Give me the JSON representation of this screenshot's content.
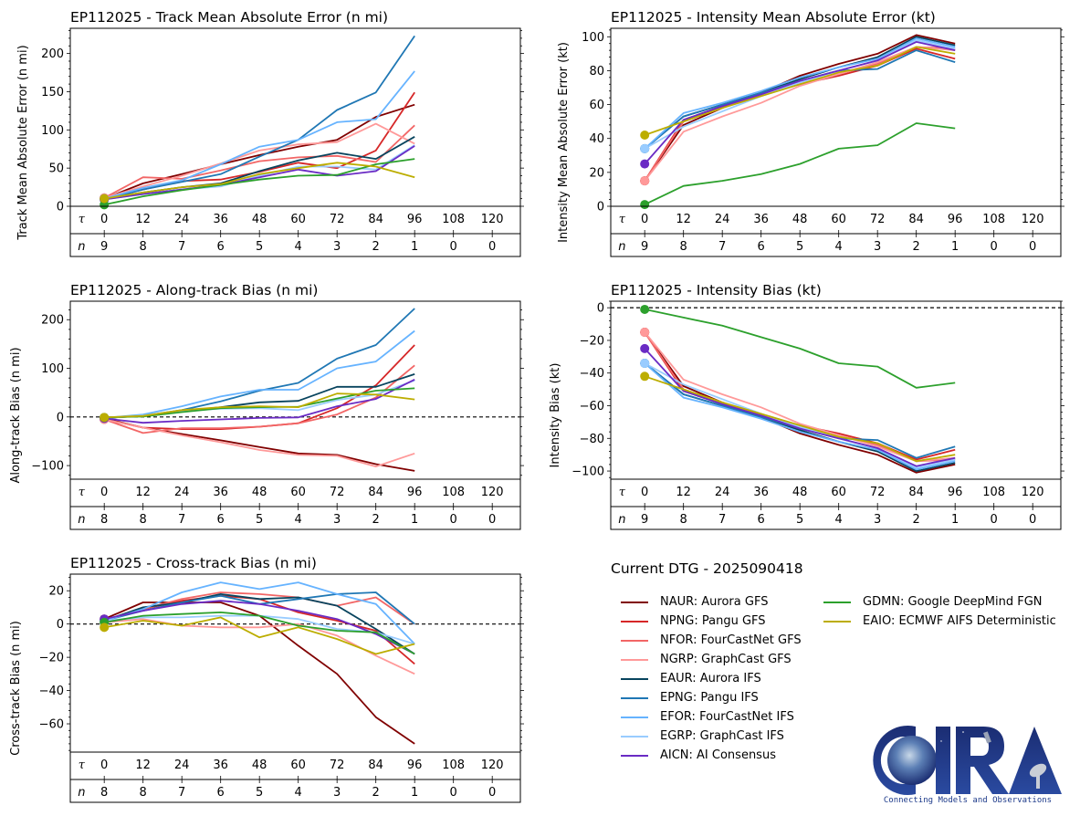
{
  "figure": {
    "storm_id": "EP112025",
    "current_dtg_label": "Current DTG - 2025090418"
  },
  "models": [
    {
      "id": "NAUR",
      "label": "NAUR: Aurora GFS",
      "color": "#800000"
    },
    {
      "id": "NPNG",
      "label": "NPNG: Pangu GFS",
      "color": "#d62728"
    },
    {
      "id": "NFOR",
      "label": "NFOR: FourCastNet GFS",
      "color": "#f26666"
    },
    {
      "id": "NGRP",
      "label": "NGRP: GraphCast GFS",
      "color": "#ff9999"
    },
    {
      "id": "EAUR",
      "label": "EAUR: Aurora IFS",
      "color": "#08445e"
    },
    {
      "id": "EPNG",
      "label": "EPNG: Pangu IFS",
      "color": "#1f77b4"
    },
    {
      "id": "EFOR",
      "label": "EFOR: FourCastNet IFS",
      "color": "#66b3ff"
    },
    {
      "id": "EGRP",
      "label": "EGRP: GraphCast IFS",
      "color": "#99ccff"
    },
    {
      "id": "AICN",
      "label": "AICN: AI Consensus",
      "color": "#6a2bc4"
    },
    {
      "id": "GDMN",
      "label": "GDMN: Google DeepMind FGN",
      "color": "#2ca02c"
    },
    {
      "id": "EAIO",
      "label": "EAIO: ECMWF AIFS Deterministic",
      "color": "#bcad00"
    }
  ],
  "logo": {
    "text": "CIRA",
    "tagline": "Connecting Models and Observations"
  },
  "chart_data": [
    {
      "id": "track_mae",
      "type": "line",
      "title": "EP112025 - Track Mean Absolute Error (n mi)",
      "xlabel": "",
      "ylabel": "Track Mean Absolute Error (n mi)",
      "ylim": [
        0,
        233
      ],
      "yticks": [
        0,
        50,
        100,
        150,
        200
      ],
      "zero_line": false,
      "x_label_tau": "τ",
      "x_label_n": "n",
      "x": [
        0,
        12,
        24,
        36,
        48,
        60,
        72,
        84,
        96
      ],
      "tau_ticks": [
        0,
        12,
        24,
        36,
        48,
        60,
        72,
        84,
        96,
        108,
        120
      ],
      "n_counts": [
        9,
        8,
        7,
        6,
        5,
        4,
        3,
        2,
        1,
        0,
        0
      ],
      "series": [
        {
          "name": "NAUR",
          "values": [
            10,
            30,
            42,
            55,
            67,
            78,
            87,
            117,
            133
          ]
        },
        {
          "name": "NPNG",
          "values": [
            10,
            22,
            33,
            35,
            45,
            57,
            50,
            73,
            149
          ]
        },
        {
          "name": "NFOR",
          "values": [
            11,
            38,
            36,
            47,
            59,
            64,
            66,
            58,
            106
          ]
        },
        {
          "name": "NGRP",
          "values": [
            11,
            26,
            40,
            56,
            73,
            81,
            84,
            108,
            82
          ]
        },
        {
          "name": "EAUR",
          "values": [
            10,
            18,
            25,
            30,
            46,
            60,
            70,
            62,
            91
          ]
        },
        {
          "name": "EPNG",
          "values": [
            9,
            22,
            32,
            42,
            65,
            87,
            126,
            149,
            223
          ]
        },
        {
          "name": "EFOR",
          "values": [
            10,
            24,
            34,
            55,
            78,
            87,
            110,
            114,
            177
          ]
        },
        {
          "name": "EGRP",
          "values": [
            9,
            16,
            22,
            26,
            40,
            52,
            52,
            48,
            80
          ]
        },
        {
          "name": "AICN",
          "values": [
            9,
            16,
            22,
            28,
            38,
            48,
            40,
            46,
            79
          ]
        },
        {
          "name": "GDMN",
          "values": [
            2,
            13,
            21,
            28,
            35,
            40,
            41,
            55,
            62
          ]
        },
        {
          "name": "EAIO",
          "values": [
            10,
            18,
            25,
            29,
            42,
            50,
            57,
            52,
            38
          ]
        }
      ]
    },
    {
      "id": "intensity_mae",
      "type": "line",
      "title": "EP112025 - Intensity Mean Absolute Error (kt)",
      "xlabel": "",
      "ylabel": "Intensity Mean Absolute Error (kt)",
      "ylim": [
        0,
        105
      ],
      "yticks": [
        0,
        20,
        40,
        60,
        80,
        100
      ],
      "zero_line": false,
      "x_label_tau": "τ",
      "x_label_n": "n",
      "x": [
        0,
        12,
        24,
        36,
        48,
        60,
        72,
        84,
        96
      ],
      "tau_ticks": [
        0,
        12,
        24,
        36,
        48,
        60,
        72,
        84,
        96,
        108,
        120
      ],
      "n_counts": [
        9,
        8,
        7,
        6,
        5,
        4,
        3,
        2,
        1,
        0,
        0
      ],
      "series": [
        {
          "name": "NAUR",
          "values": [
            15,
            48,
            58,
            67,
            77,
            84,
            90,
            101,
            96
          ]
        },
        {
          "name": "NPNG",
          "values": [
            15,
            51,
            59,
            66,
            72,
            77,
            83,
            93,
            87
          ]
        },
        {
          "name": "NFOR",
          "values": [
            15,
            50,
            58,
            66,
            72,
            78,
            84,
            94,
            93
          ]
        },
        {
          "name": "NGRP",
          "values": [
            15,
            44,
            53,
            61,
            71,
            78,
            85,
            94,
            92
          ]
        },
        {
          "name": "EAUR",
          "values": [
            34,
            53,
            60,
            67,
            75,
            82,
            88,
            100,
            95
          ]
        },
        {
          "name": "EPNG",
          "values": [
            34,
            53,
            60,
            67,
            74,
            80,
            81,
            92,
            85
          ]
        },
        {
          "name": "EFOR",
          "values": [
            34,
            55,
            61,
            68,
            76,
            82,
            87,
            99,
            94
          ]
        },
        {
          "name": "EGRP",
          "values": [
            34,
            47,
            56,
            65,
            73,
            80,
            86,
            98,
            93
          ]
        },
        {
          "name": "AICN",
          "values": [
            25,
            51,
            59,
            66,
            74,
            80,
            86,
            97,
            92
          ]
        },
        {
          "name": "GDMN",
          "values": [
            1,
            12,
            15,
            19,
            25,
            34,
            36,
            49,
            46
          ]
        },
        {
          "name": "EAIO",
          "values": [
            42,
            50,
            58,
            65,
            72,
            79,
            83,
            94,
            90
          ]
        }
      ]
    },
    {
      "id": "along_track_bias",
      "type": "line",
      "title": "EP112025 - Along-track Bias (n mi)",
      "xlabel": "",
      "ylabel": "Along-track Bias (n mi)",
      "ylim": [
        -128,
        238
      ],
      "yticks": [
        -100,
        0,
        100,
        200
      ],
      "zero_line": true,
      "x_label_tau": "τ",
      "x_label_n": "n",
      "x": [
        0,
        12,
        24,
        36,
        48,
        60,
        72,
        84,
        96
      ],
      "tau_ticks": [
        0,
        12,
        24,
        36,
        48,
        60,
        72,
        84,
        96,
        108,
        120
      ],
      "n_counts": [
        8,
        8,
        7,
        6,
        5,
        4,
        3,
        2,
        1,
        0,
        0
      ],
      "series": [
        {
          "name": "NAUR",
          "values": [
            -3,
            -22,
            -35,
            -48,
            -62,
            -75,
            -78,
            -97,
            -111
          ]
        },
        {
          "name": "NPNG",
          "values": [
            -5,
            -22,
            -25,
            -25,
            -20,
            -13,
            18,
            65,
            148
          ]
        },
        {
          "name": "NFOR",
          "values": [
            -5,
            -33,
            -23,
            -23,
            -20,
            -13,
            5,
            40,
            106
          ]
        },
        {
          "name": "NGRP",
          "values": [
            -5,
            -22,
            -38,
            -52,
            -68,
            -78,
            -80,
            -102,
            -75
          ]
        },
        {
          "name": "EAUR",
          "values": [
            -2,
            2,
            12,
            20,
            30,
            33,
            62,
            62,
            88
          ]
        },
        {
          "name": "EPNG",
          "values": [
            -2,
            2,
            14,
            32,
            54,
            70,
            120,
            148,
            223
          ]
        },
        {
          "name": "EFOR",
          "values": [
            -2,
            5,
            22,
            42,
            56,
            56,
            100,
            114,
            177
          ]
        },
        {
          "name": "EGRP",
          "values": [
            -2,
            3,
            12,
            17,
            18,
            14,
            35,
            46,
            75
          ]
        },
        {
          "name": "AICN",
          "values": [
            -3,
            -12,
            -8,
            -5,
            -2,
            -1,
            22,
            37,
            77
          ]
        },
        {
          "name": "GDMN",
          "values": [
            -1,
            1,
            10,
            18,
            20,
            21,
            38,
            54,
            59
          ]
        },
        {
          "name": "EAIO",
          "values": [
            -1,
            2,
            14,
            20,
            22,
            20,
            48,
            46,
            36
          ]
        }
      ]
    },
    {
      "id": "intensity_bias",
      "type": "line",
      "title": "EP112025 - Intensity Bias (kt)",
      "xlabel": "",
      "ylabel": "Intensity Bias (kt)",
      "ylim": [
        -105,
        4
      ],
      "yticks": [
        -100,
        -80,
        -60,
        -40,
        -20,
        0
      ],
      "zero_line": true,
      "x_label_tau": "τ",
      "x_label_n": "n",
      "x": [
        0,
        12,
        24,
        36,
        48,
        60,
        72,
        84,
        96
      ],
      "tau_ticks": [
        0,
        12,
        24,
        36,
        48,
        60,
        72,
        84,
        96,
        108,
        120
      ],
      "n_counts": [
        9,
        8,
        7,
        6,
        5,
        4,
        3,
        2,
        1,
        0,
        0
      ],
      "series": [
        {
          "name": "NAUR",
          "values": [
            -15,
            -48,
            -58,
            -67,
            -77,
            -84,
            -90,
            -101,
            -96
          ]
        },
        {
          "name": "NPNG",
          "values": [
            -15,
            -51,
            -59,
            -66,
            -72,
            -77,
            -83,
            -93,
            -87
          ]
        },
        {
          "name": "NFOR",
          "values": [
            -15,
            -50,
            -58,
            -66,
            -72,
            -78,
            -84,
            -94,
            -93
          ]
        },
        {
          "name": "NGRP",
          "values": [
            -15,
            -44,
            -53,
            -61,
            -71,
            -78,
            -85,
            -94,
            -92
          ]
        },
        {
          "name": "EAUR",
          "values": [
            -34,
            -53,
            -60,
            -67,
            -75,
            -82,
            -88,
            -100,
            -95
          ]
        },
        {
          "name": "EPNG",
          "values": [
            -34,
            -53,
            -60,
            -67,
            -74,
            -80,
            -81,
            -92,
            -85
          ]
        },
        {
          "name": "EFOR",
          "values": [
            -34,
            -55,
            -61,
            -68,
            -76,
            -82,
            -87,
            -99,
            -94
          ]
        },
        {
          "name": "EGRP",
          "values": [
            -34,
            -47,
            -56,
            -65,
            -73,
            -80,
            -86,
            -98,
            -93
          ]
        },
        {
          "name": "AICN",
          "values": [
            -25,
            -51,
            -59,
            -66,
            -74,
            -80,
            -86,
            -97,
            -92
          ]
        },
        {
          "name": "GDMN",
          "values": [
            -1,
            -6,
            -11,
            -18,
            -25,
            -34,
            -36,
            -49,
            -46
          ]
        },
        {
          "name": "EAIO",
          "values": [
            -42,
            -50,
            -58,
            -65,
            -72,
            -79,
            -83,
            -94,
            -90
          ]
        }
      ]
    },
    {
      "id": "cross_track_bias",
      "type": "line",
      "title": "EP112025 - Cross-track Bias (n mi)",
      "xlabel": "",
      "ylabel": "Cross-track Bias (n mi)",
      "ylim": [
        -77,
        30
      ],
      "yticks": [
        -60,
        -40,
        -20,
        0,
        20
      ],
      "zero_line": true,
      "x_label_tau": "τ",
      "x_label_n": "n",
      "x": [
        0,
        12,
        24,
        36,
        48,
        60,
        72,
        84,
        96
      ],
      "tau_ticks": [
        0,
        12,
        24,
        36,
        48,
        60,
        72,
        84,
        96,
        108,
        120
      ],
      "n_counts": [
        8,
        8,
        7,
        6,
        5,
        4,
        3,
        2,
        1,
        0,
        0
      ],
      "series": [
        {
          "name": "NAUR",
          "values": [
            3,
            13,
            13,
            13,
            5,
            -13,
            -30,
            -56,
            -72
          ]
        },
        {
          "name": "NPNG",
          "values": [
            2,
            9,
            14,
            17,
            15,
            7,
            2,
            -4,
            -24
          ]
        },
        {
          "name": "NFOR",
          "values": [
            2,
            9,
            15,
            19,
            18,
            16,
            11,
            16,
            0
          ]
        },
        {
          "name": "NGRP",
          "values": [
            1,
            3,
            -1,
            -2,
            -2,
            0,
            -7,
            -19,
            -30
          ]
        },
        {
          "name": "EAUR",
          "values": [
            2,
            10,
            13,
            18,
            15,
            16,
            11,
            -3,
            -18
          ]
        },
        {
          "name": "EPNG",
          "values": [
            2,
            8,
            13,
            17,
            12,
            15,
            18,
            19,
            0
          ]
        },
        {
          "name": "EFOR",
          "values": [
            2,
            9,
            19,
            25,
            21,
            25,
            18,
            12,
            -12
          ]
        },
        {
          "name": "EGRP",
          "values": [
            2,
            4,
            4,
            5,
            5,
            3,
            -3,
            -5,
            -12
          ]
        },
        {
          "name": "AICN",
          "values": [
            3,
            8,
            12,
            14,
            12,
            8,
            3,
            -6,
            -18
          ]
        },
        {
          "name": "GDMN",
          "values": [
            1,
            5,
            6,
            7,
            5,
            -1,
            -4,
            -5,
            -18
          ]
        },
        {
          "name": "EAIO",
          "values": [
            -2,
            2,
            -1,
            4,
            -8,
            -2,
            -9,
            -18,
            -12
          ]
        }
      ]
    }
  ]
}
